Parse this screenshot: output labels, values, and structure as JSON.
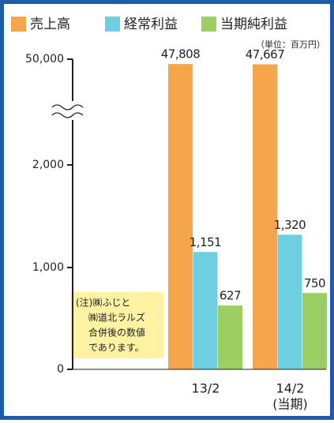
{
  "chart_data": {
    "type": "bar",
    "legend": [
      "売上高",
      "経常利益",
      "当期純利益"
    ],
    "unit_note": "（単位：百万円）",
    "categories": [
      "13/2",
      "14/2"
    ],
    "category_note": [
      null,
      "(当期)"
    ],
    "series": [
      {
        "name": "売上高",
        "color": "#f7a54a",
        "values": [
          47808,
          47667
        ],
        "value_labels": [
          "47,808",
          "47,667"
        ]
      },
      {
        "name": "経常利益",
        "color": "#6dcfe0",
        "values": [
          1151,
          1320
        ],
        "value_labels": [
          "1,151",
          "1,320"
        ]
      },
      {
        "name": "当期純利益",
        "color": "#9ccf63",
        "values": [
          627,
          750
        ]
      }
    ],
    "ylim": [
      0,
      50000
    ],
    "yticks": [
      0,
      {
        "value": 1000,
        "label": "1,000"
      },
      {
        "value": 2000,
        "label": "2,000"
      },
      {
        "value": 50000,
        "label": "50,000"
      }
    ],
    "axis_break": true,
    "annotation": [
      "(注)㈱ふじと",
      "㈱道北ラルズ",
      "合併後の数値",
      "であります。"
    ]
  }
}
